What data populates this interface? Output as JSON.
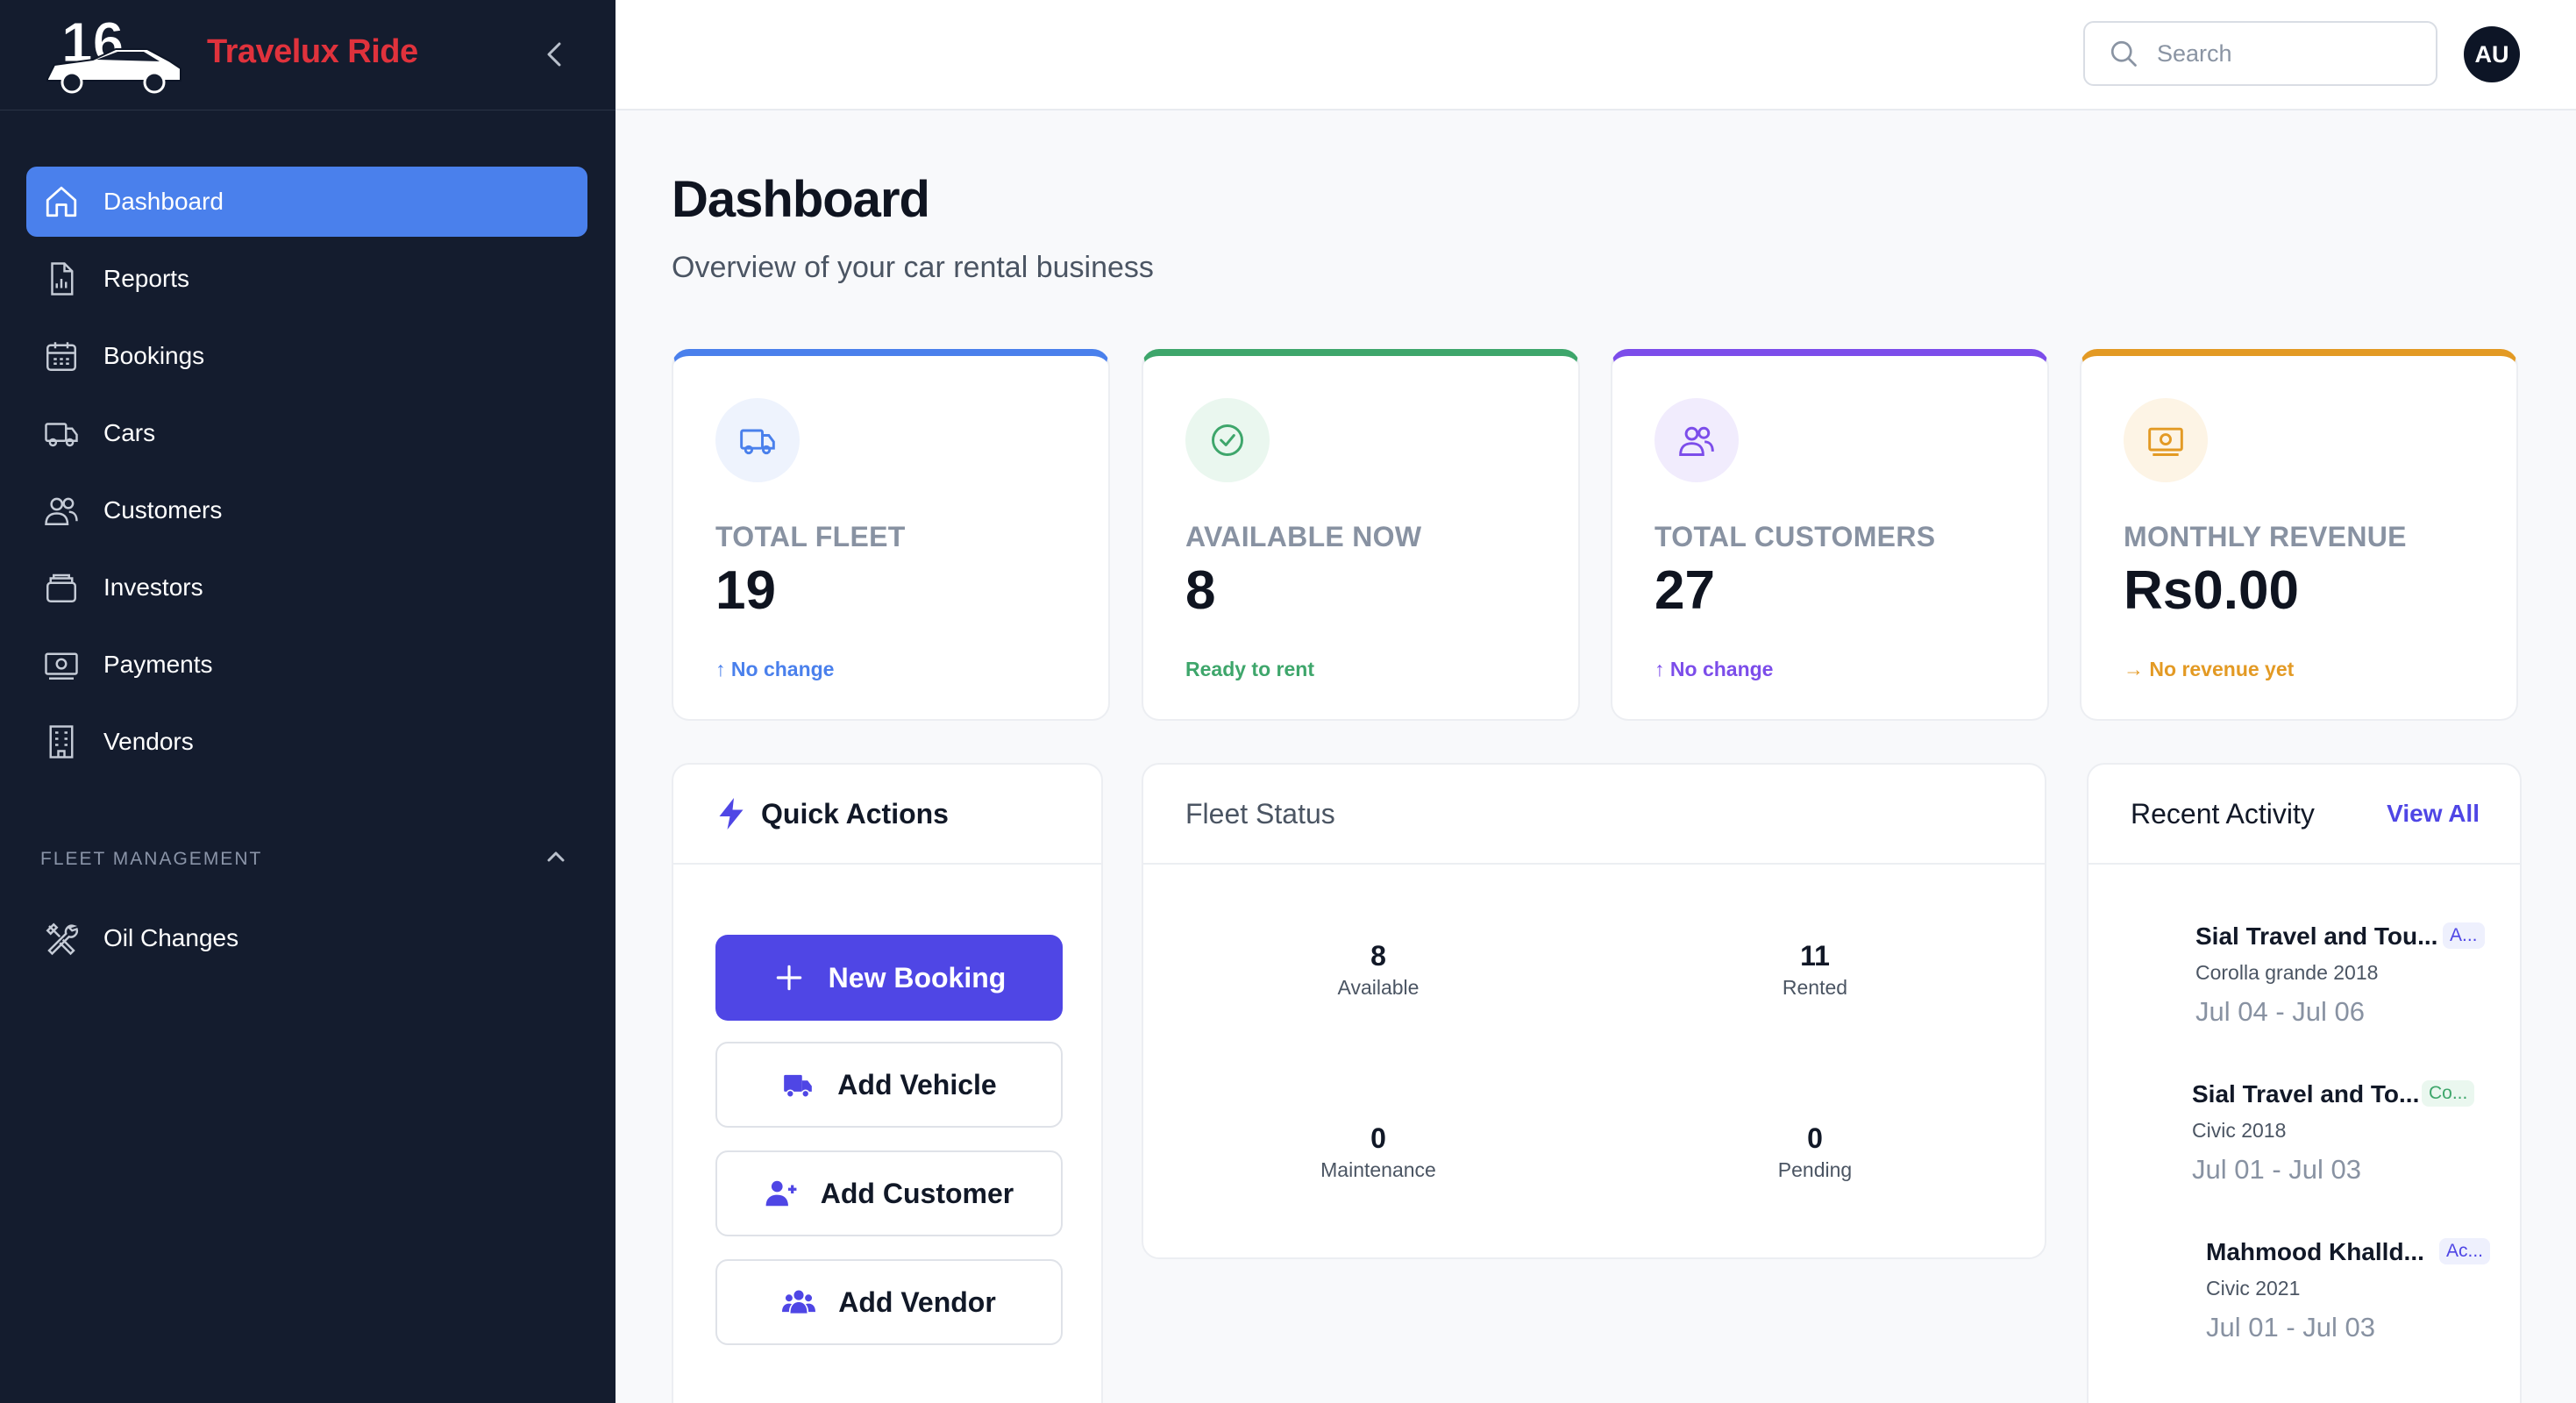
{
  "brand": {
    "name": "Travelux Ride",
    "logo_text": "16"
  },
  "sidebar": {
    "items": [
      {
        "label": "Dashboard",
        "icon": "home-icon",
        "active": true
      },
      {
        "label": "Reports",
        "icon": "report-icon"
      },
      {
        "label": "Bookings",
        "icon": "calendar-icon"
      },
      {
        "label": "Cars",
        "icon": "truck-icon"
      },
      {
        "label": "Customers",
        "icon": "users-icon"
      },
      {
        "label": "Investors",
        "icon": "investors-icon"
      },
      {
        "label": "Payments",
        "icon": "money-icon"
      },
      {
        "label": "Vendors",
        "icon": "building-icon"
      }
    ],
    "section_label": "FLEET MANAGEMENT",
    "section_items": [
      {
        "label": "Oil Changes",
        "icon": "tools-icon"
      }
    ]
  },
  "topbar": {
    "search_placeholder": "Search",
    "avatar_initials": "AU"
  },
  "main": {
    "title": "Dashboard",
    "subtitle": "Overview of your car rental business"
  },
  "stats": [
    {
      "label": "TOTAL FLEET",
      "value": "19",
      "note": "↑ No change",
      "accent": "#4a80ec",
      "icon": "truck-icon"
    },
    {
      "label": "AVAILABLE NOW",
      "value": "8",
      "note": "Ready to rent",
      "accent": "#3ea66b",
      "icon": "check-circle-icon"
    },
    {
      "label": "TOTAL CUSTOMERS",
      "value": "27",
      "note": "↑ No change",
      "accent": "#7c4dea",
      "icon": "users-icon"
    },
    {
      "label": "MONTHLY REVENUE",
      "value": "Rs0.00",
      "note": "→ No revenue yet",
      "accent": "#e39a24",
      "icon": "money-icon"
    }
  ],
  "quick_actions": {
    "title": "Quick Actions",
    "buttons": [
      {
        "label": "New Booking",
        "icon": "plus-icon"
      },
      {
        "label": "Add Vehicle",
        "icon": "truck-icon"
      },
      {
        "label": "Add Customer",
        "icon": "user-plus-icon"
      },
      {
        "label": "Add Vendor",
        "icon": "users-icon"
      }
    ]
  },
  "fleet_status": {
    "title": "Fleet Status",
    "cells": [
      {
        "value": "8",
        "label": "Available"
      },
      {
        "value": "11",
        "label": "Rented"
      },
      {
        "value": "0",
        "label": "Maintenance"
      },
      {
        "value": "0",
        "label": "Pending"
      }
    ]
  },
  "recent_activity": {
    "title": "Recent Activity",
    "view_all": "View All",
    "items": [
      {
        "name": "Sial Travel and Tou...",
        "badge": "A...",
        "car": "Corolla grande 2018",
        "dates": "Jul 04 - Jul 06"
      },
      {
        "name": "Sial Travel and To...",
        "badge": "Co...",
        "car": "Civic 2018",
        "dates": "Jul 01 - Jul 03"
      },
      {
        "name": "Mahmood Khalld...",
        "badge": "Ac...",
        "car": "Civic 2021",
        "dates": "Jul 01 - Jul 03"
      }
    ]
  },
  "colors": {
    "primary": "#4f46e5",
    "active_nav": "#4a80ec",
    "brand_red": "#e0323c",
    "sidebar_bg": "#141c2e"
  }
}
